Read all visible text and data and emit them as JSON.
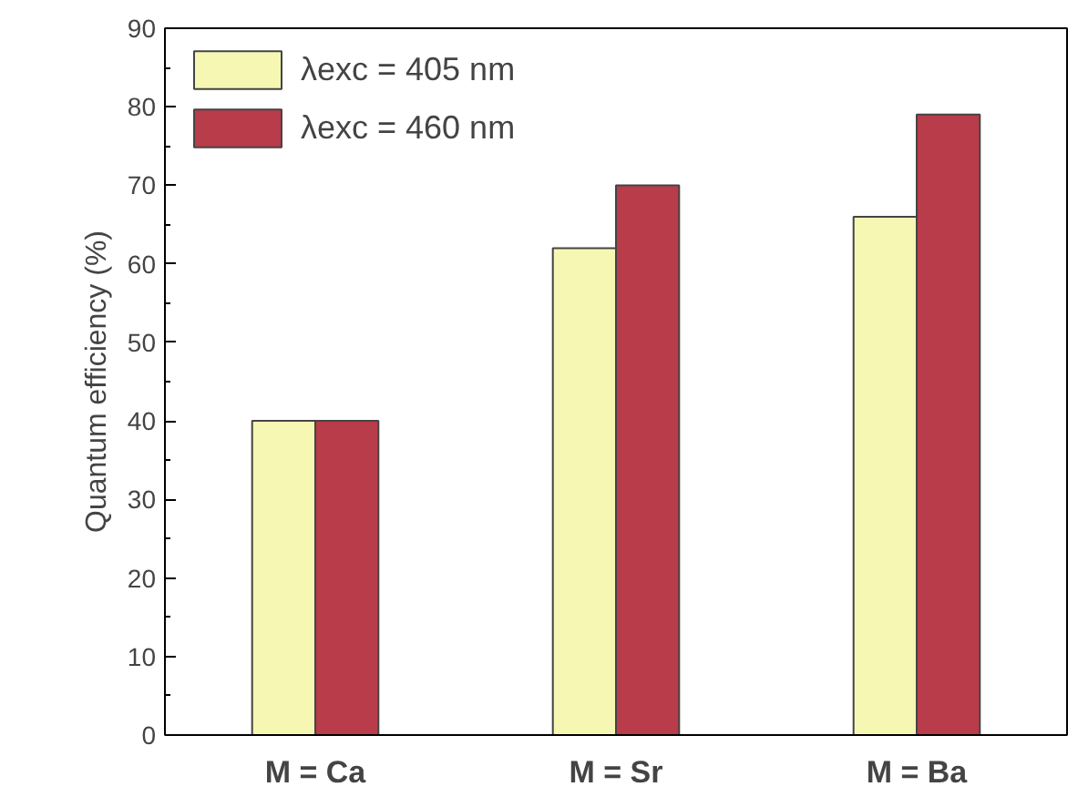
{
  "chart_data": {
    "type": "bar",
    "ylabel": "Quantum efficiency (%)",
    "categories": [
      "M = Ca",
      "M = Sr",
      "M = Ba"
    ],
    "series": [
      {
        "name": "λexc = 405 nm",
        "color": "#f7f7b4",
        "values": [
          40,
          62,
          66
        ]
      },
      {
        "name": "λexc = 460 nm",
        "color": "#b83c4a",
        "values": [
          40,
          70,
          79
        ]
      }
    ],
    "ylim": [
      0,
      90
    ],
    "yticks": [
      0,
      10,
      20,
      30,
      40,
      50,
      60,
      70,
      80,
      90
    ],
    "grid": false,
    "legend": "top left"
  }
}
